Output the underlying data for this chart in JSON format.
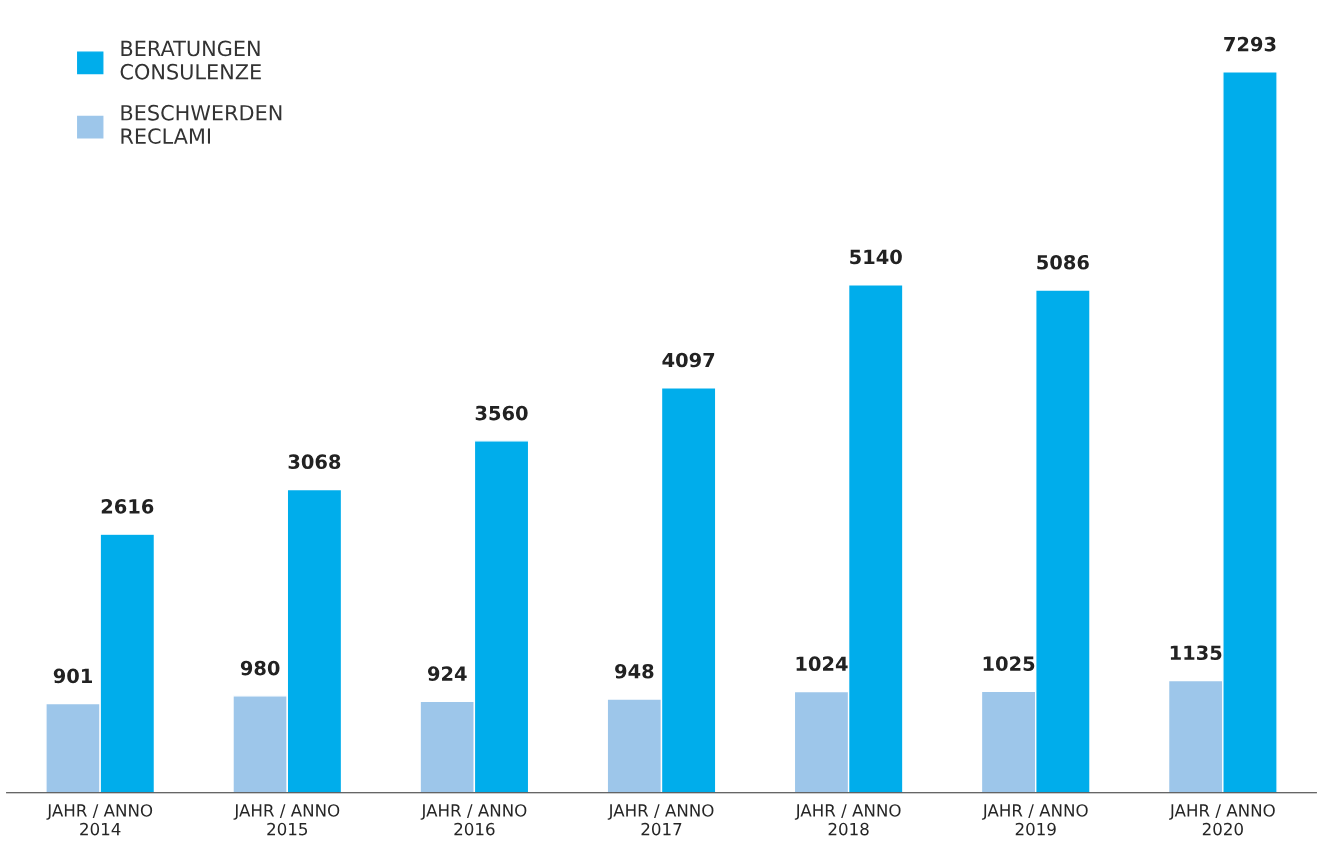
{
  "chart_data": {
    "type": "bar",
    "categories": [
      "JAHR / ANNO\n2014",
      "JAHR / ANNO\n2015",
      "JAHR / ANNO\n2016",
      "JAHR / ANNO\n2017",
      "JAHR / ANNO\n2018",
      "JAHR / ANNO\n2019",
      "JAHR / ANNO\n2020"
    ],
    "series": [
      {
        "name": "BESCHWERDEN\nRECLAMI",
        "color": "#9dc6ea",
        "values": [
          901,
          980,
          924,
          948,
          1024,
          1025,
          1135
        ]
      },
      {
        "name": "BERATUNGEN\nCONSULENZE",
        "color": "#00adeb",
        "values": [
          2616,
          3068,
          3560,
          4097,
          5140,
          5086,
          7293
        ]
      }
    ],
    "data_labels": true,
    "legend": "top left",
    "grid": false,
    "tick_labels": "x"
  }
}
